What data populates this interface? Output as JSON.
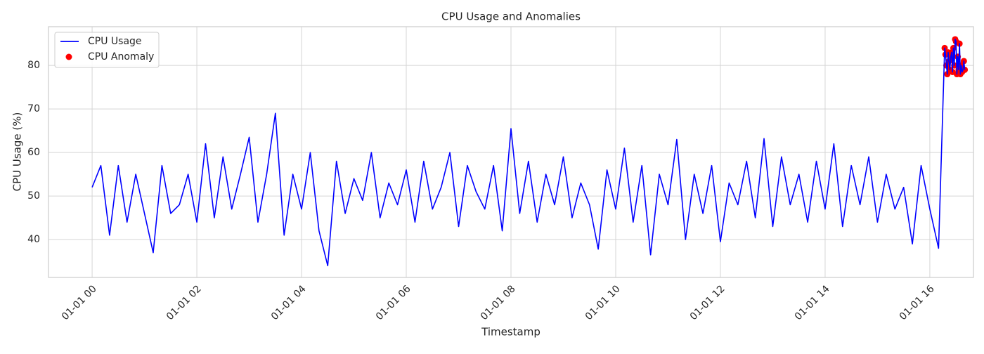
{
  "chart_data": {
    "type": "line",
    "title": "CPU Usage and Anomalies",
    "x_label": "Timestamp",
    "y_label": "CPU Usage (%)",
    "xlim": [
      -50,
      1010
    ],
    "ylim": [
      31.3,
      88.9
    ],
    "xticks": [
      {
        "value": 0,
        "label": "01-01 00"
      },
      {
        "value": 120,
        "label": "01-01 02"
      },
      {
        "value": 240,
        "label": "01-01 04"
      },
      {
        "value": 360,
        "label": "01-01 06"
      },
      {
        "value": 480,
        "label": "01-01 08"
      },
      {
        "value": 600,
        "label": "01-01 10"
      },
      {
        "value": 720,
        "label": "01-01 12"
      },
      {
        "value": 840,
        "label": "01-01 14"
      },
      {
        "value": 960,
        "label": "01-01 16"
      }
    ],
    "yticks": [
      40,
      50,
      60,
      70,
      80
    ],
    "grid": true,
    "legend": "upper-left",
    "series": [
      {
        "name": "CPU Usage",
        "type": "line",
        "color": "#0000ff",
        "x": [
          0,
          10,
          20,
          30,
          40,
          50,
          60,
          70,
          80,
          90,
          100,
          110,
          120,
          130,
          140,
          150,
          160,
          170,
          180,
          190,
          200,
          210,
          220,
          230,
          240,
          250,
          260,
          270,
          280,
          290,
          300,
          310,
          320,
          330,
          340,
          350,
          360,
          370,
          380,
          390,
          400,
          410,
          420,
          430,
          440,
          450,
          460,
          470,
          480,
          490,
          500,
          510,
          520,
          530,
          540,
          550,
          560,
          570,
          580,
          590,
          600,
          610,
          620,
          630,
          640,
          650,
          660,
          670,
          680,
          690,
          700,
          710,
          720,
          730,
          740,
          750,
          760,
          770,
          780,
          790,
          800,
          810,
          820,
          830,
          840,
          850,
          860,
          870,
          880,
          890,
          900,
          910,
          920,
          930,
          940,
          950,
          960,
          970,
          977,
          978,
          979,
          980,
          981,
          982,
          983,
          984,
          985,
          986,
          987,
          988,
          989,
          990,
          991,
          992,
          993,
          994,
          995,
          996,
          997,
          998,
          999,
          1000
        ],
        "values": [
          52,
          57,
          41,
          57,
          44,
          55,
          46,
          37,
          57,
          46,
          48,
          55,
          44,
          62,
          45,
          59,
          47,
          55,
          63.5,
          44,
          55,
          69,
          41,
          55,
          47,
          60,
          42,
          34,
          58,
          46,
          54,
          49,
          60,
          45,
          53,
          48,
          56,
          44,
          58,
          47,
          52,
          60,
          43,
          57,
          51,
          47,
          57,
          42,
          65.5,
          46,
          58,
          44,
          55,
          48,
          59,
          45,
          53,
          48,
          37.8,
          56,
          47,
          61,
          44,
          57,
          36.5,
          55,
          48,
          63,
          40,
          55,
          46,
          57,
          39.5,
          53,
          48,
          58,
          45,
          63.2,
          43,
          59,
          48,
          55,
          44,
          58,
          47,
          62,
          43,
          57,
          48,
          59,
          44,
          55,
          47,
          52,
          39,
          57,
          47,
          38,
          84,
          82.5,
          80,
          78,
          83,
          81,
          79,
          82,
          83,
          78.5,
          84,
          80,
          86,
          85.5,
          78,
          82,
          79,
          85,
          78,
          80,
          78.5,
          79,
          81,
          79
        ]
      },
      {
        "name": "CPU Anomaly",
        "type": "scatter",
        "color": "#ff0000",
        "x": [
          977,
          978,
          979,
          980,
          981,
          982,
          983,
          984,
          985,
          986,
          987,
          988,
          989,
          990,
          991,
          992,
          993,
          994,
          995,
          996,
          997,
          998,
          999,
          1000
        ],
        "values": [
          84,
          82.5,
          80,
          78,
          83,
          81,
          79,
          82,
          83,
          78.5,
          84,
          80,
          86,
          85.5,
          78,
          82,
          79,
          85,
          78,
          80,
          78.5,
          79,
          81,
          79
        ]
      }
    ]
  }
}
